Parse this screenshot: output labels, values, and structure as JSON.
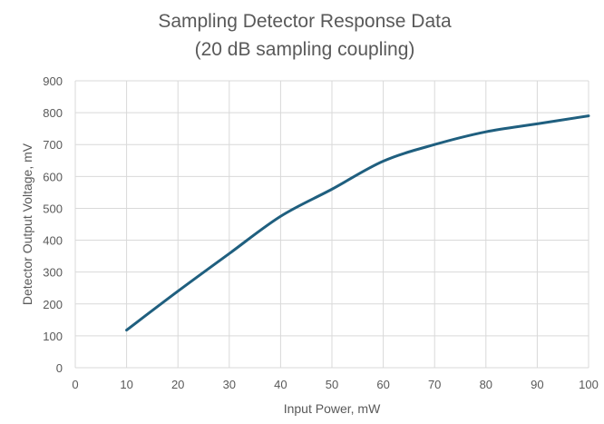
{
  "chart_data": {
    "type": "line",
    "title": "Sampling Detector Response Data",
    "subtitle": "(20 dB sampling coupling)",
    "xlabel": "Input Power, mW",
    "ylabel": "Detector Output Voltage, mV",
    "xlim": [
      0,
      100
    ],
    "ylim": [
      0,
      900
    ],
    "xticks": [
      "0",
      "10",
      "20",
      "30",
      "40",
      "50",
      "60",
      "70",
      "80",
      "90",
      "100"
    ],
    "yticks": [
      "0",
      "100",
      "200",
      "300",
      "400",
      "500",
      "600",
      "700",
      "800",
      "900"
    ],
    "grid": true,
    "legend": "none",
    "line_color": "#1f5f7f",
    "series": [
      {
        "x": [
          10,
          20,
          30,
          40,
          50,
          60,
          70,
          80,
          90,
          100
        ],
        "values": [
          118,
          240,
          358,
          475,
          560,
          648,
          700,
          740,
          765,
          790
        ]
      }
    ]
  }
}
